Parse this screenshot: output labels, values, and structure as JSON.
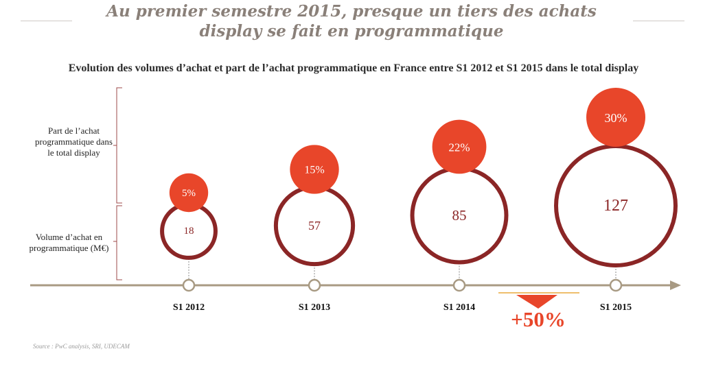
{
  "title_line1": "Au premier semestre 2015, presque un tiers des achats",
  "title_line2": "display se fait en programmatique",
  "source": "Source : PwC analysis, SRI, UDECAM",
  "colors": {
    "accent": "#e8462a",
    "ring": "#8b2626",
    "axis": "#a89a83",
    "title": "#8a8079"
  },
  "chart_data": {
    "type": "bubble-timeline",
    "title": "Evolution des volumes d’achat et part de l’achat programmatique en France entre S1 2012 et S1 2015  dans le total display",
    "row_labels": {
      "share": "Part de l’achat programmatique dans le total display",
      "volume": "Volume d’achat en programmatique (M€)"
    },
    "categories": [
      "S1 2012",
      "S1 2013",
      "S1 2014",
      "S1 2015"
    ],
    "series": [
      {
        "name": "Part de l’achat programmatique dans le total display",
        "values": [
          "5%",
          "15%",
          "22%",
          "30%"
        ]
      },
      {
        "name": "Volume d’achat en programmatique (M€)",
        "values": [
          "18",
          "57",
          "85",
          "127"
        ]
      }
    ],
    "annotation": "+50%"
  }
}
